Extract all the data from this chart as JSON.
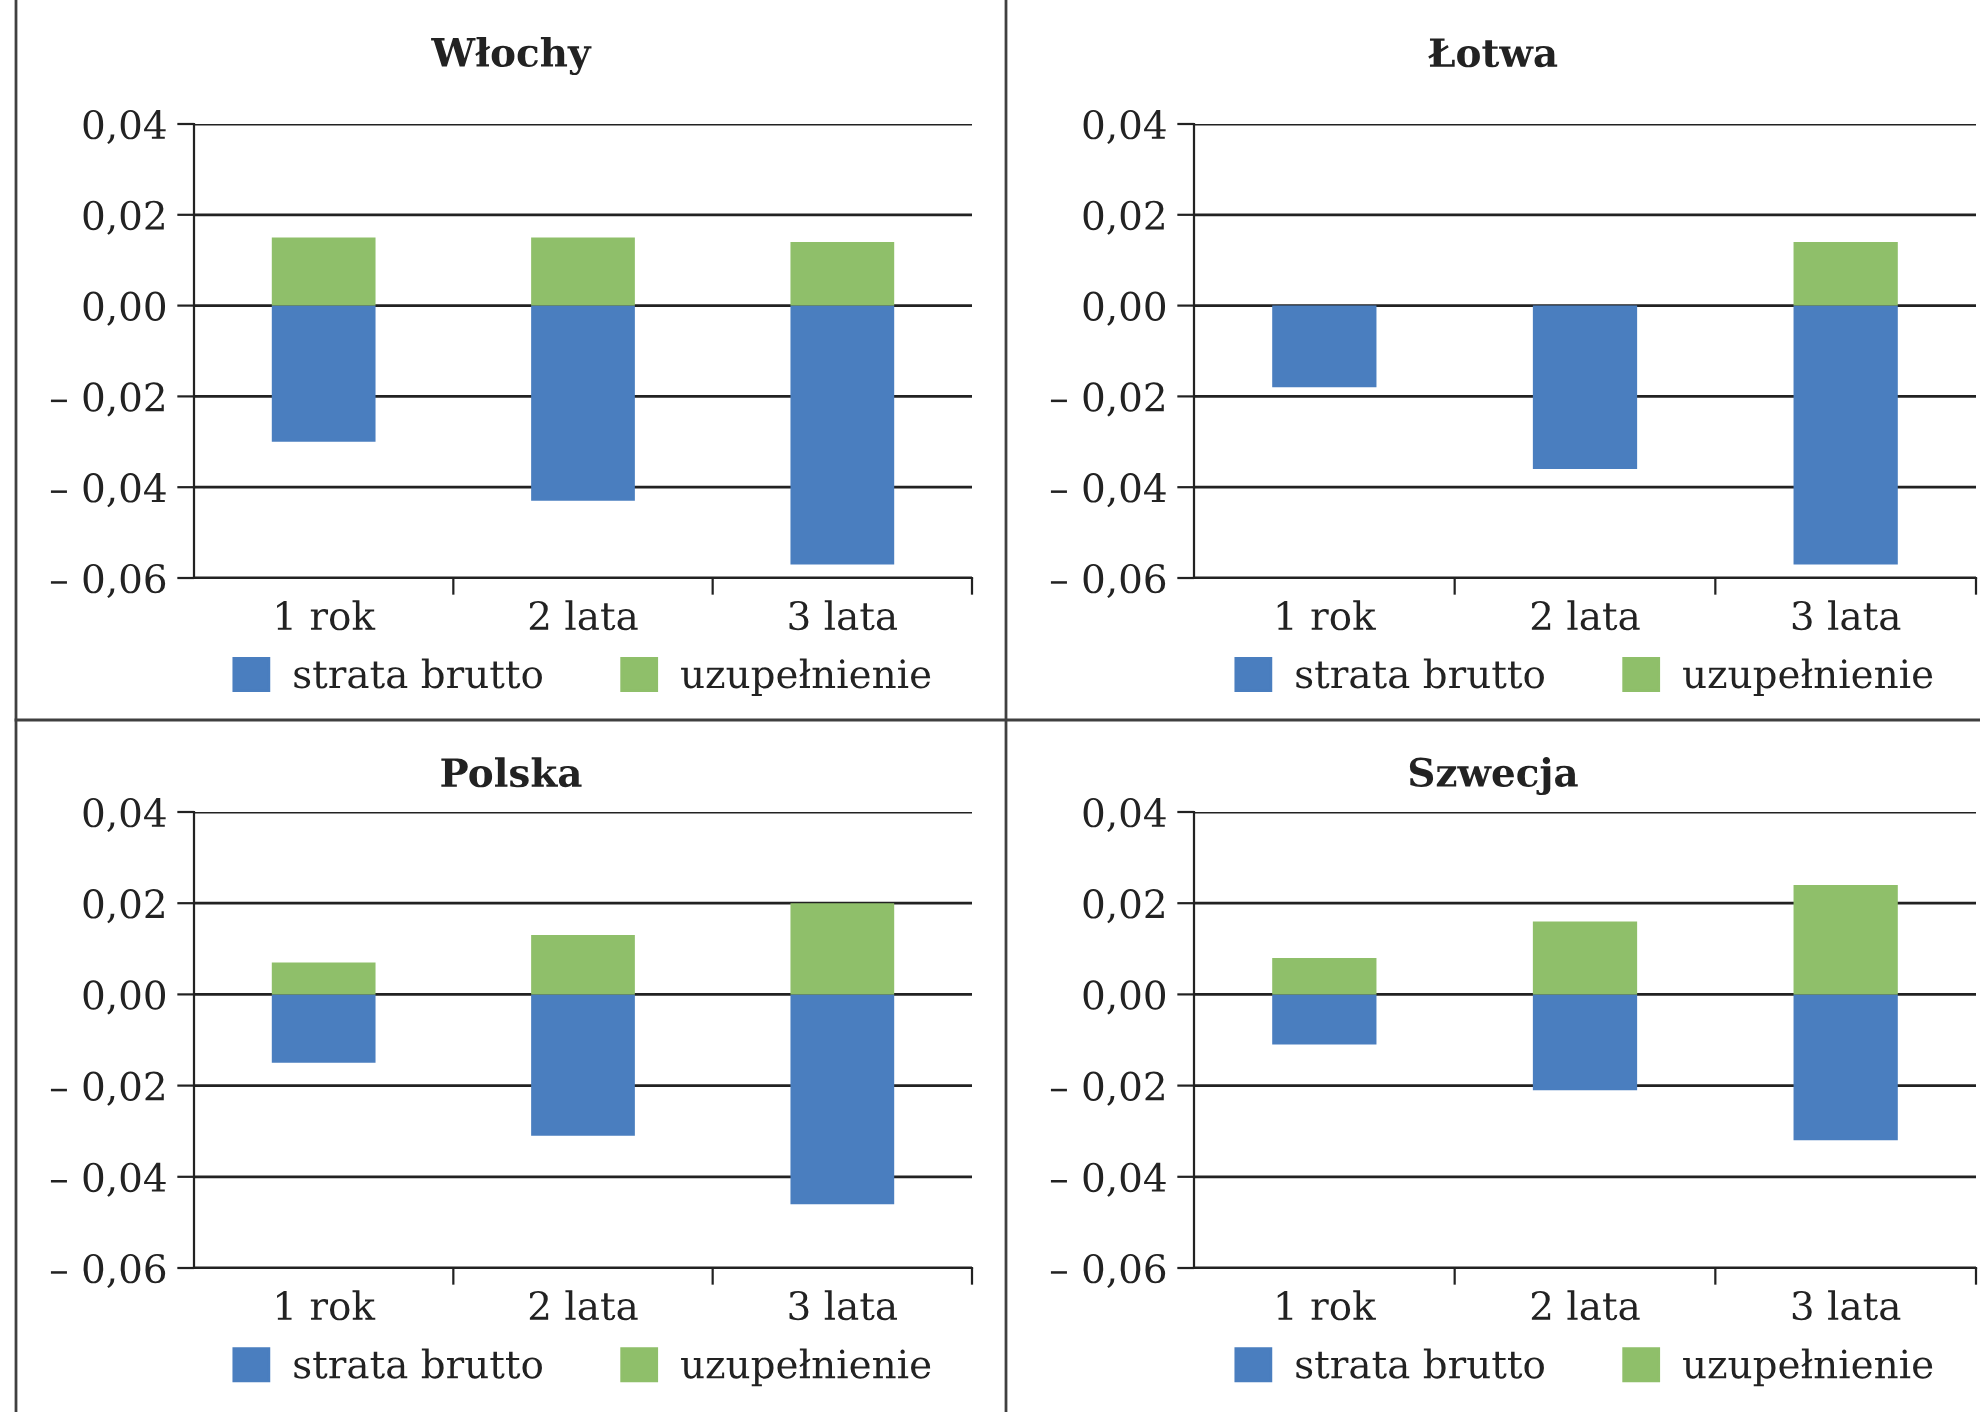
{
  "chart_data": [
    {
      "type": "bar",
      "title": "Włochy",
      "categories": [
        "1 rok",
        "2 lata",
        "3 lata"
      ],
      "stacked": true,
      "ylim": [
        -0.06,
        0.04
      ],
      "yticks": [
        {
          "value": -0.06,
          "label": "– 0,06"
        },
        {
          "value": -0.04,
          "label": "– 0,04"
        },
        {
          "value": -0.02,
          "label": "– 0,02"
        },
        {
          "value": 0,
          "label": "0,00"
        },
        {
          "value": 0.02,
          "label": "0,02"
        },
        {
          "value": 0.04,
          "label": "0,04"
        }
      ],
      "grid": "y",
      "legend": "bottom",
      "series": [
        {
          "name": "strata brutto",
          "color": "#4a7ebf",
          "values": [
            -0.03,
            -0.043,
            -0.057
          ]
        },
        {
          "name": "uzupełnienie",
          "color": "#8fbf6a",
          "values": [
            0.015,
            0.015,
            0.014
          ]
        }
      ]
    },
    {
      "type": "bar",
      "title": "Łotwa",
      "categories": [
        "1 rok",
        "2 lata",
        "3 lata"
      ],
      "stacked": true,
      "ylim": [
        -0.06,
        0.04
      ],
      "yticks": [
        {
          "value": -0.06,
          "label": "– 0,06"
        },
        {
          "value": -0.04,
          "label": "– 0,04"
        },
        {
          "value": -0.02,
          "label": "– 0,02"
        },
        {
          "value": 0,
          "label": "0,00"
        },
        {
          "value": 0.02,
          "label": "0,02"
        },
        {
          "value": 0.04,
          "label": "0,04"
        }
      ],
      "grid": "y",
      "legend": "bottom",
      "series": [
        {
          "name": "strata brutto",
          "color": "#4a7ebf",
          "values": [
            -0.018,
            -0.036,
            -0.057
          ]
        },
        {
          "name": "uzupełnienie",
          "color": "#8fbf6a",
          "values": [
            null,
            null,
            0.014
          ]
        }
      ]
    },
    {
      "type": "bar",
      "title": "Polska",
      "categories": [
        "1 rok",
        "2 lata",
        "3 lata"
      ],
      "stacked": true,
      "ylim": [
        -0.06,
        0.04
      ],
      "yticks": [
        {
          "value": -0.06,
          "label": "– 0,06"
        },
        {
          "value": -0.04,
          "label": "– 0,04"
        },
        {
          "value": -0.02,
          "label": "– 0,02"
        },
        {
          "value": 0,
          "label": "0,00"
        },
        {
          "value": 0.02,
          "label": "0,02"
        },
        {
          "value": 0.04,
          "label": "0,04"
        }
      ],
      "grid": "y",
      "legend": "bottom",
      "series": [
        {
          "name": "strata brutto",
          "color": "#4a7ebf",
          "values": [
            -0.015,
            -0.031,
            -0.046
          ]
        },
        {
          "name": "uzupełnienie",
          "color": "#8fbf6a",
          "values": [
            0.007,
            0.013,
            0.02
          ]
        }
      ]
    },
    {
      "type": "bar",
      "title": "Szwecja",
      "categories": [
        "1 rok",
        "2 lata",
        "3 lata"
      ],
      "stacked": true,
      "ylim": [
        -0.06,
        0.04
      ],
      "yticks": [
        {
          "value": -0.06,
          "label": "– 0,06"
        },
        {
          "value": -0.04,
          "label": "– 0,04"
        },
        {
          "value": -0.02,
          "label": "– 0,02"
        },
        {
          "value": 0,
          "label": "0,00"
        },
        {
          "value": 0.02,
          "label": "0,02"
        },
        {
          "value": 0.04,
          "label": "0,04"
        }
      ],
      "grid": "y",
      "legend": "bottom",
      "series": [
        {
          "name": "strata brutto",
          "color": "#4a7ebf",
          "values": [
            -0.011,
            -0.021,
            -0.032
          ]
        },
        {
          "name": "uzupełnienie",
          "color": "#8fbf6a",
          "values": [
            0.008,
            0.016,
            0.024
          ]
        }
      ]
    }
  ]
}
